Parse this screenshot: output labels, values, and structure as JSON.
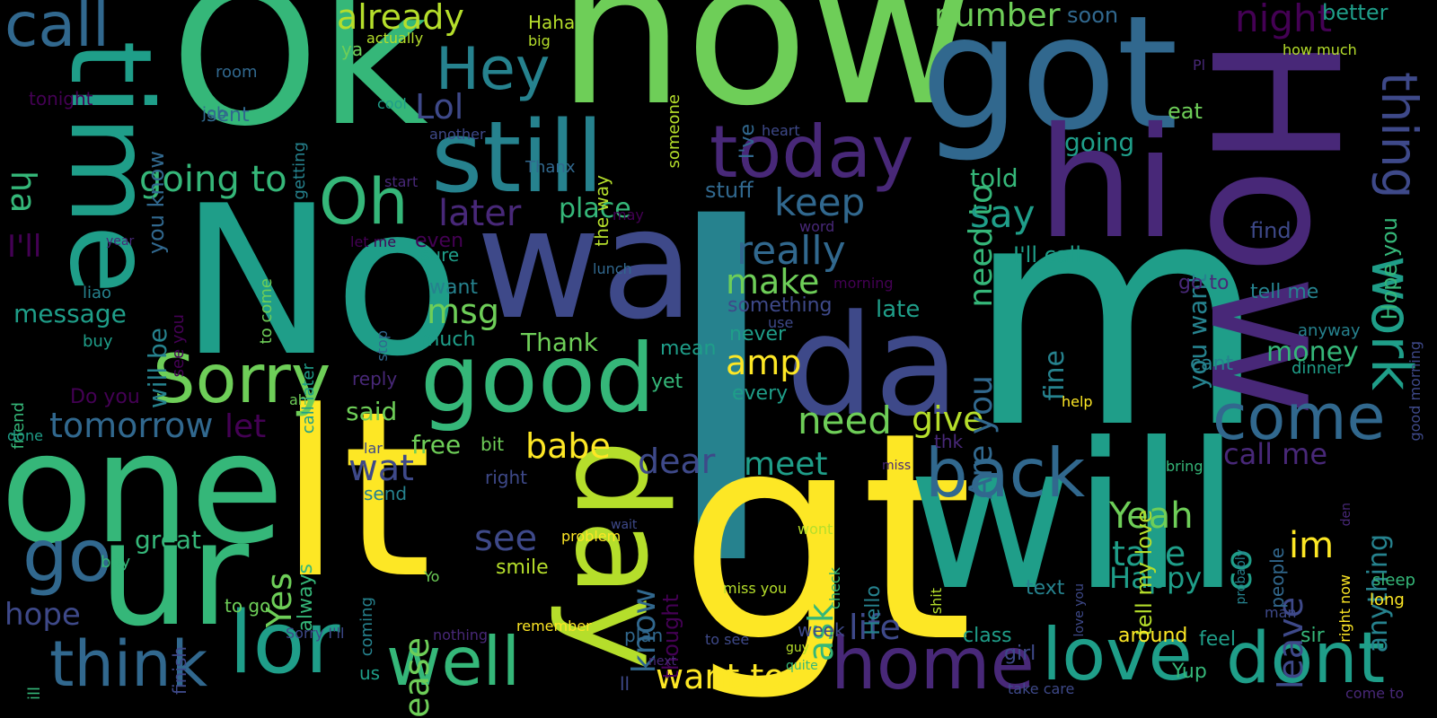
{
  "palette": {
    "background": "#000000",
    "c1": "#fde725",
    "c2": "#b5de2b",
    "c3": "#6ece58",
    "c4": "#35b779",
    "c5": "#1f9e89",
    "c6": "#26828e",
    "c7": "#31688e",
    "c8": "#3e4989",
    "c9": "#482878",
    "c10": "#440154"
  },
  "words": [
    {
      "text": "I",
      "color": "c6"
    },
    {
      "text": "now",
      "color": "c3"
    },
    {
      "text": "Ok",
      "color": "c4"
    },
    {
      "text": "No",
      "color": "c5"
    },
    {
      "text": "gt",
      "color": "c1"
    },
    {
      "text": "lt",
      "color": "c1"
    },
    {
      "text": "m",
      "color": "c5"
    },
    {
      "text": "will",
      "color": "c5"
    },
    {
      "text": "got",
      "color": "c7"
    },
    {
      "text": "How",
      "color": "c9"
    },
    {
      "text": "wa",
      "color": "c8"
    },
    {
      "text": "one",
      "color": "c4"
    },
    {
      "text": "time",
      "color": "c5"
    },
    {
      "text": "da",
      "color": "c8"
    },
    {
      "text": "day",
      "color": "c2"
    },
    {
      "text": "hi",
      "color": "c9"
    },
    {
      "text": "ur",
      "color": "c4"
    },
    {
      "text": "still",
      "color": "c6"
    },
    {
      "text": "good",
      "color": "c4"
    },
    {
      "text": "today",
      "color": "c9"
    },
    {
      "text": "lor",
      "color": "c5"
    },
    {
      "text": "home",
      "color": "c9"
    },
    {
      "text": "well",
      "color": "c4"
    },
    {
      "text": "love",
      "color": "c5"
    },
    {
      "text": "dont",
      "color": "c5"
    },
    {
      "text": "back",
      "color": "c7"
    },
    {
      "text": "think",
      "color": "c7"
    },
    {
      "text": "Sorry",
      "color": "c3"
    },
    {
      "text": "come",
      "color": "c7"
    },
    {
      "text": "go",
      "color": "c7"
    },
    {
      "text": "Oh",
      "color": "c4"
    },
    {
      "text": "Hey",
      "color": "c6"
    },
    {
      "text": "call",
      "color": "c7"
    },
    {
      "text": "work",
      "color": "c5"
    },
    {
      "text": "thing",
      "color": "c8"
    },
    {
      "text": "night",
      "color": "c10"
    },
    {
      "text": "already",
      "color": "c2"
    },
    {
      "text": "number",
      "color": "c3"
    },
    {
      "text": "going to",
      "color": "c4"
    },
    {
      "text": "tomorrow",
      "color": "c7"
    },
    {
      "text": "keep",
      "color": "c7"
    },
    {
      "text": "later",
      "color": "c9"
    },
    {
      "text": "really",
      "color": "c7"
    },
    {
      "text": "make",
      "color": "c3"
    },
    {
      "text": "need",
      "color": "c3"
    },
    {
      "text": "give",
      "color": "c2"
    },
    {
      "text": "need to",
      "color": "c4"
    },
    {
      "text": "say",
      "color": "c5"
    },
    {
      "text": "Are you",
      "color": "c7"
    },
    {
      "text": "Lol",
      "color": "c8"
    },
    {
      "text": "ha",
      "color": "c4"
    },
    {
      "text": "I'll",
      "color": "c10"
    },
    {
      "text": "msg",
      "color": "c3"
    },
    {
      "text": "amp",
      "color": "c1"
    },
    {
      "text": "babe",
      "color": "c1"
    },
    {
      "text": "dear",
      "color": "c8"
    },
    {
      "text": "meet",
      "color": "c5"
    },
    {
      "text": "wat",
      "color": "c8"
    },
    {
      "text": "Yeah",
      "color": "c3"
    },
    {
      "text": "take",
      "color": "c5"
    },
    {
      "text": "Happy",
      "color": "c5"
    },
    {
      "text": "ask",
      "color": "c4"
    },
    {
      "text": "see",
      "color": "c8"
    },
    {
      "text": "please",
      "color": "c3"
    },
    {
      "text": "Yes",
      "color": "c3"
    },
    {
      "text": "know",
      "color": "c7"
    },
    {
      "text": "im",
      "color": "c1"
    },
    {
      "text": "co",
      "color": "c5"
    },
    {
      "text": "leave",
      "color": "c8"
    },
    {
      "text": "call me",
      "color": "c9"
    },
    {
      "text": "anything",
      "color": "c6"
    },
    {
      "text": "life",
      "color": "c8"
    },
    {
      "text": "want to",
      "color": "c1"
    },
    {
      "text": "hope",
      "color": "c8"
    },
    {
      "text": "let",
      "color": "c10"
    },
    {
      "text": "tell my love",
      "color": "c2"
    },
    {
      "text": "fine",
      "color": "c6"
    },
    {
      "text": "going",
      "color": "c5"
    },
    {
      "text": "told",
      "color": "c4"
    },
    {
      "text": "you want",
      "color": "c6"
    },
    {
      "text": "Hope you",
      "color": "c4"
    },
    {
      "text": "money",
      "color": "c4"
    },
    {
      "text": "place",
      "color": "c4"
    },
    {
      "text": "stuff",
      "color": "c7"
    },
    {
      "text": "message",
      "color": "c5"
    },
    {
      "text": "Thank",
      "color": "c3"
    },
    {
      "text": "great",
      "color": "c4"
    },
    {
      "text": "free",
      "color": "c3"
    },
    {
      "text": "said",
      "color": "c3"
    },
    {
      "text": "will be",
      "color": "c6"
    },
    {
      "text": "you know",
      "color": "c7"
    },
    {
      "text": "I'll call",
      "color": "c5"
    },
    {
      "text": "tell me",
      "color": "c6"
    },
    {
      "text": "find",
      "color": "c8"
    },
    {
      "text": "go to",
      "color": "c9"
    },
    {
      "text": "eat",
      "color": "c3"
    },
    {
      "text": "soon",
      "color": "c7"
    },
    {
      "text": "better",
      "color": "c5"
    },
    {
      "text": "Haha",
      "color": "c2"
    },
    {
      "text": "Do you",
      "color": "c10"
    },
    {
      "text": "late",
      "color": "c5"
    },
    {
      "text": "something",
      "color": "c8"
    },
    {
      "text": "never",
      "color": "c5"
    },
    {
      "text": "every",
      "color": "c5"
    },
    {
      "text": "mean",
      "color": "c5"
    },
    {
      "text": "yet",
      "color": "c4"
    },
    {
      "text": "want",
      "color": "c6"
    },
    {
      "text": "much",
      "color": "c5"
    },
    {
      "text": "even",
      "color": "c10"
    },
    {
      "text": "sure",
      "color": "c5"
    },
    {
      "text": "bit",
      "color": "c3"
    },
    {
      "text": "always",
      "color": "c4"
    },
    {
      "text": "send",
      "color": "c6"
    },
    {
      "text": "smile",
      "color": "c2"
    },
    {
      "text": "thought",
      "color": "c10"
    },
    {
      "text": "Hello",
      "color": "c6"
    },
    {
      "text": "class",
      "color": "c5"
    },
    {
      "text": "around",
      "color": "c1"
    },
    {
      "text": "feel",
      "color": "c5"
    },
    {
      "text": "sir",
      "color": "c4"
    },
    {
      "text": "Yup",
      "color": "c4"
    },
    {
      "text": "girl",
      "color": "c8"
    },
    {
      "text": "text",
      "color": "c6"
    },
    {
      "text": "cant",
      "color": "c6"
    },
    {
      "text": "dinner",
      "color": "c5"
    },
    {
      "text": "anyway",
      "color": "c6"
    },
    {
      "text": "people",
      "color": "c7"
    },
    {
      "text": "right now",
      "color": "c1"
    },
    {
      "text": "sleep",
      "color": "c4"
    },
    {
      "text": "long",
      "color": "c1"
    },
    {
      "text": "good morning",
      "color": "c8"
    },
    {
      "text": "how much",
      "color": "c2"
    },
    {
      "text": "Pl",
      "color": "c9"
    },
    {
      "text": "I've",
      "color": "c7"
    },
    {
      "text": "someone",
      "color": "c2"
    },
    {
      "text": "the way",
      "color": "c2"
    },
    {
      "text": "Thanx",
      "color": "c7"
    },
    {
      "text": "heart",
      "color": "c8"
    },
    {
      "text": "word",
      "color": "c9"
    },
    {
      "text": "may",
      "color": "c10"
    },
    {
      "text": "lunch",
      "color": "c7"
    },
    {
      "text": "morning",
      "color": "c10"
    },
    {
      "text": "use",
      "color": "c8"
    },
    {
      "text": "stop",
      "color": "c7"
    },
    {
      "text": "let me",
      "color": "c10"
    },
    {
      "text": "start",
      "color": "c9"
    },
    {
      "text": "another",
      "color": "c8"
    },
    {
      "text": "cool",
      "color": "c5"
    },
    {
      "text": "big",
      "color": "c2"
    },
    {
      "text": "actually",
      "color": "c2"
    },
    {
      "text": "ya",
      "color": "c3"
    },
    {
      "text": "room",
      "color": "c7"
    },
    {
      "text": "job",
      "color": "c7"
    },
    {
      "text": "sent",
      "color": "c7"
    },
    {
      "text": "getting",
      "color": "c6"
    },
    {
      "text": "tonight",
      "color": "c10"
    },
    {
      "text": "year",
      "color": "c9"
    },
    {
      "text": "to come",
      "color": "c3"
    },
    {
      "text": "see you",
      "color": "c10"
    },
    {
      "text": "liao",
      "color": "c6"
    },
    {
      "text": "call later",
      "color": "c5"
    },
    {
      "text": "buy",
      "color": "c5"
    },
    {
      "text": "friend",
      "color": "c4"
    },
    {
      "text": "ah",
      "color": "c3"
    },
    {
      "text": "done",
      "color": "c5"
    },
    {
      "text": "reply",
      "color": "c9"
    },
    {
      "text": "lar",
      "color": "c8"
    },
    {
      "text": "right",
      "color": "c8"
    },
    {
      "text": "coming",
      "color": "c6"
    },
    {
      "text": "to go",
      "color": "c3"
    },
    {
      "text": "finish",
      "color": "c8"
    },
    {
      "text": "boy",
      "color": "c4"
    },
    {
      "text": "ill",
      "color": "c4"
    },
    {
      "text": "Sorry I'll",
      "color": "c8"
    },
    {
      "text": "us",
      "color": "c5"
    },
    {
      "text": "nothing",
      "color": "c9"
    },
    {
      "text": "remember",
      "color": "c1"
    },
    {
      "text": "Yo",
      "color": "c3"
    },
    {
      "text": "problem",
      "color": "c1"
    },
    {
      "text": "wait",
      "color": "c8"
    },
    {
      "text": "wont",
      "color": "c2"
    },
    {
      "text": "check",
      "color": "c4"
    },
    {
      "text": "miss you",
      "color": "c2"
    },
    {
      "text": "plan",
      "color": "c7"
    },
    {
      "text": "to see",
      "color": "c8"
    },
    {
      "text": "next",
      "color": "c9"
    },
    {
      "text": "ll",
      "color": "c8"
    },
    {
      "text": "week",
      "color": "c8"
    },
    {
      "text": "guy",
      "color": "c2"
    },
    {
      "text": "quite",
      "color": "c4"
    },
    {
      "text": "miss",
      "color": "c9"
    },
    {
      "text": "thk",
      "color": "c9"
    },
    {
      "text": "help",
      "color": "c1"
    },
    {
      "text": "bring",
      "color": "c4"
    },
    {
      "text": "probably",
      "color": "c6"
    },
    {
      "text": "love you",
      "color": "c8"
    },
    {
      "text": "shit",
      "color": "c2"
    },
    {
      "text": "man",
      "color": "c8"
    },
    {
      "text": "den",
      "color": "c9"
    },
    {
      "text": "take care",
      "color": "c8"
    },
    {
      "text": "come to",
      "color": "c9"
    }
  ]
}
